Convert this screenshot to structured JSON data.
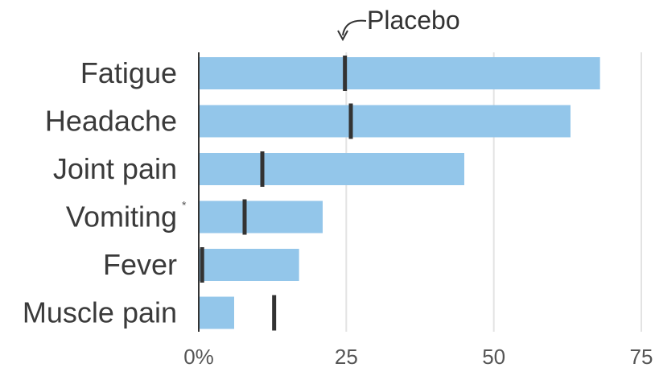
{
  "chart_data": {
    "type": "bar",
    "orientation": "horizontal",
    "categories": [
      "Fatigue",
      "Headache",
      "Joint pain",
      "Vomiting",
      "Fever",
      "Muscle pain"
    ],
    "category_footnote": {
      "Vomiting": "*"
    },
    "series": [
      {
        "values": [
          68,
          63,
          45,
          21,
          17,
          6
        ],
        "color": "#93c6ea"
      },
      {
        "name": "Placebo",
        "type": "marker",
        "values": [
          24.5,
          25.5,
          10.5,
          7.5,
          0.3,
          12.5
        ],
        "color": "#333333"
      }
    ],
    "xticks": [
      "0%",
      "25",
      "50",
      "75"
    ],
    "xtick_values": [
      0,
      25,
      50,
      75
    ],
    "xlim": [
      0,
      77
    ],
    "grid": true,
    "annotation": {
      "text": "Placebo",
      "target_category": "Fatigue"
    }
  }
}
